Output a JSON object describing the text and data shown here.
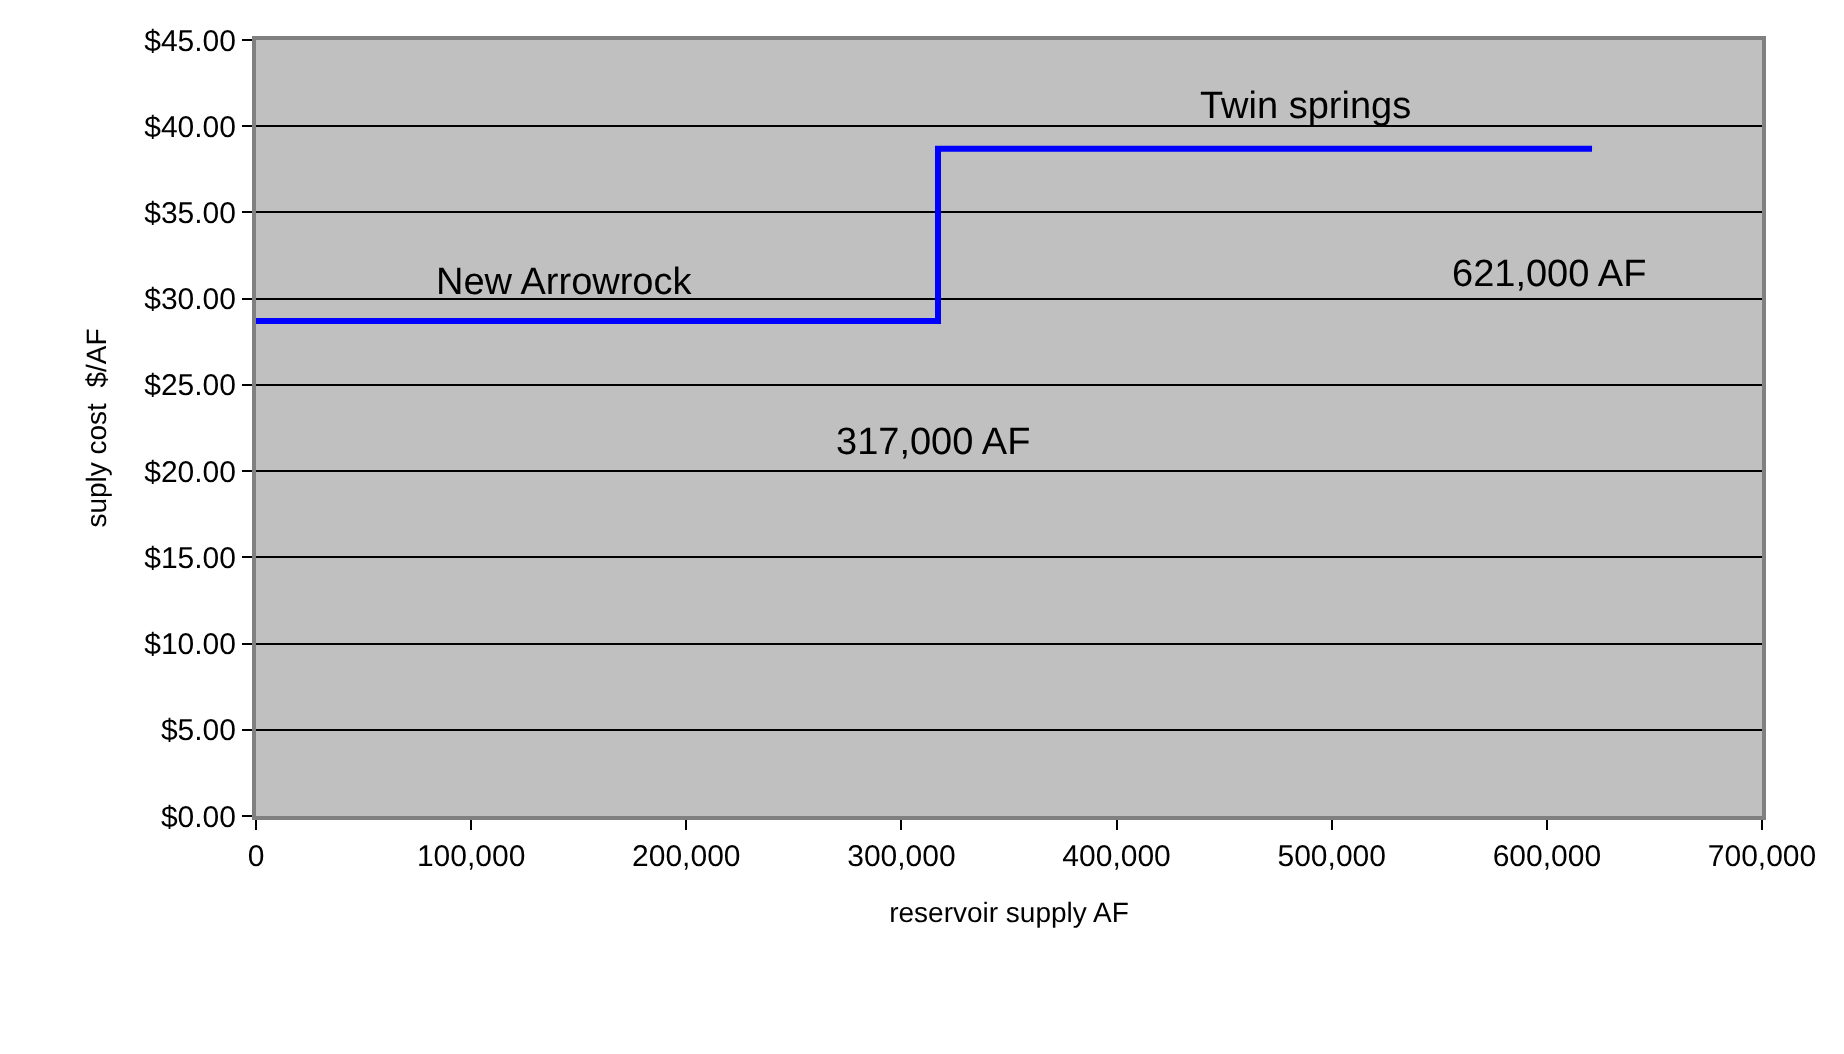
{
  "chart_data": {
    "type": "step",
    "xlabel": "reservoir supply AF",
    "ylabel": "suply cost  $/AF",
    "x": [
      0,
      317000,
      621000
    ],
    "series": [
      {
        "color": "#0000ff",
        "values": [
          28.7,
          38.7,
          38.7
        ]
      }
    ],
    "xlim": [
      0,
      700000
    ],
    "xticks": [
      {
        "value": 0,
        "label": "0"
      },
      {
        "value": 100000,
        "label": "100,000"
      },
      {
        "value": 200000,
        "label": "200,000"
      },
      {
        "value": 300000,
        "label": "300,000"
      },
      {
        "value": 400000,
        "label": "400,000"
      },
      {
        "value": 500000,
        "label": "500,000"
      },
      {
        "value": 600000,
        "label": "600,000"
      },
      {
        "value": 700000,
        "label": "700,000"
      }
    ],
    "ylim": [
      0,
      45
    ],
    "yticks": [
      {
        "value": 0,
        "label": "$0.00"
      },
      {
        "value": 5,
        "label": "$5.00"
      },
      {
        "value": 10,
        "label": "$10.00"
      },
      {
        "value": 15,
        "label": "$15.00"
      },
      {
        "value": 20,
        "label": "$20.00"
      },
      {
        "value": 25,
        "label": "$25.00"
      },
      {
        "value": 30,
        "label": "$30.00"
      },
      {
        "value": 35,
        "label": "$35.00"
      },
      {
        "value": 40,
        "label": "$40.00"
      },
      {
        "value": 45,
        "label": "$45.00"
      }
    ],
    "grid": "y",
    "marker": "none",
    "line_style": "solid",
    "annotations": [
      "New Arrowrock",
      "Twin springs",
      "317,000 AF",
      "621,000 AF"
    ]
  }
}
